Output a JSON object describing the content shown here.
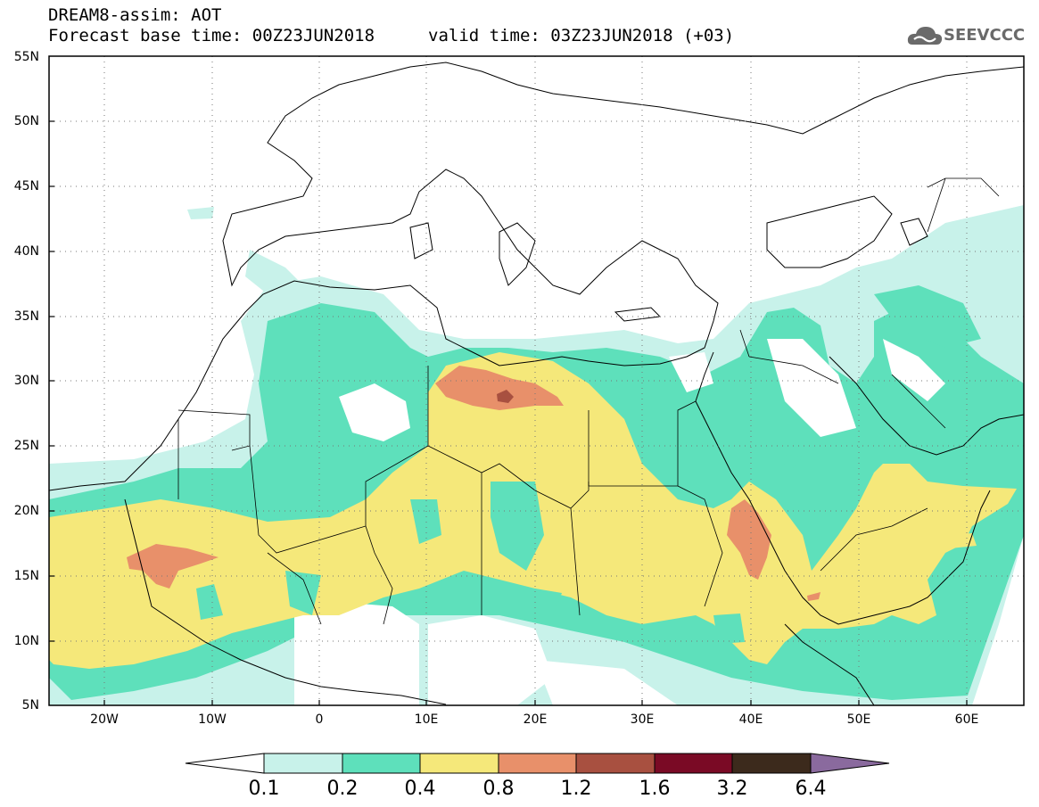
{
  "header": {
    "line1": "DREAM8-assim: AOT",
    "line2": "Forecast base time: 00Z23JUN2018",
    "valid": "valid time: 03Z23JUN2018 (+03)",
    "logo_text": "SEEVCCC",
    "logo_icon": "cloud-icon"
  },
  "map": {
    "lon_range": [
      -25,
      65
    ],
    "lat_range": [
      5,
      55
    ],
    "y_labels": [
      "55N",
      "50N",
      "45N",
      "40N",
      "35N",
      "30N",
      "25N",
      "20N",
      "15N",
      "10N",
      "5N"
    ],
    "x_labels": [
      "20W",
      "10W",
      "0",
      "10E",
      "20E",
      "30E",
      "40E",
      "50E",
      "60E"
    ],
    "graticule": "dotted"
  },
  "colorbar": {
    "colors": [
      "#ffffff",
      "#c8f2ea",
      "#5ee0bb",
      "#f5e87a",
      "#e8906a",
      "#a85040",
      "#7a0a25",
      "#3c2a1c",
      "#8a6a9e"
    ],
    "labels": [
      "0.1",
      "0.2",
      "0.4",
      "0.8",
      "1.2",
      "1.6",
      "3.2",
      "6.4"
    ]
  }
}
